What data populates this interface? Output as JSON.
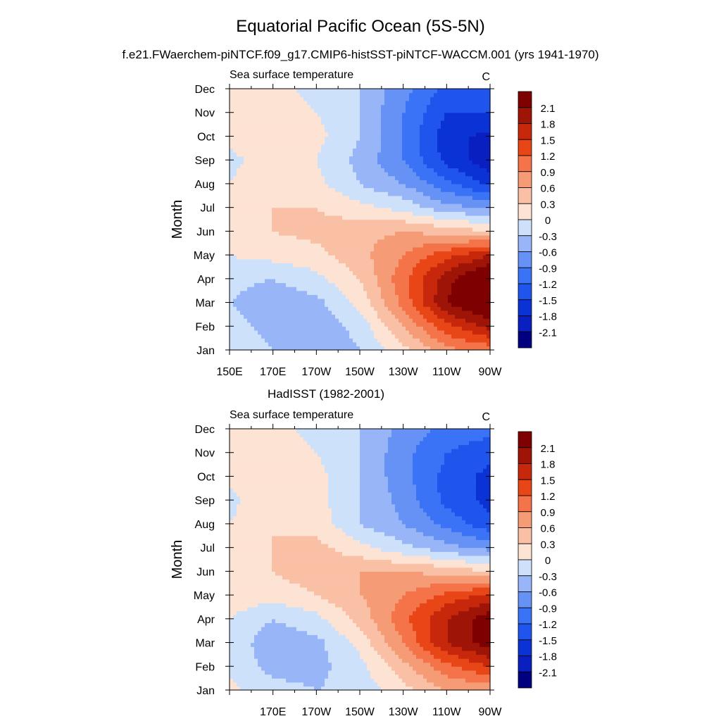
{
  "figure": {
    "title": "Equatorial Pacific Ocean (5S-5N)",
    "subtitle": "f.e21.FWaerchem-piNTCF.f09_g17.CMIP6-histSST-piNTCF-WACCM.001 (yrs 1941-1970)"
  },
  "chart_data": [
    {
      "type": "heatmap",
      "panel_title": "",
      "left_label": "Sea surface temperature",
      "right_label": "C",
      "ylabel": "Month",
      "xlabel": "",
      "x_range_deg_east": [
        150,
        270
      ],
      "x_ticks": [
        {
          "lon": 150,
          "label": "150E"
        },
        {
          "lon": 170,
          "label": "170E"
        },
        {
          "lon": 190,
          "label": "170W"
        },
        {
          "lon": 210,
          "label": "150W"
        },
        {
          "lon": 230,
          "label": "130W"
        },
        {
          "lon": 250,
          "label": "110W"
        },
        {
          "lon": 270,
          "label": "90W"
        }
      ],
      "y_ticks": [
        "Jan",
        "Feb",
        "Mar",
        "Apr",
        "May",
        "Jun",
        "Jul",
        "Aug",
        "Sep",
        "Oct",
        "Nov",
        "Dec"
      ],
      "contour_levels": [
        -2.1,
        -1.8,
        -1.5,
        -1.2,
        -0.9,
        -0.6,
        -0.3,
        0,
        0.3,
        0.6,
        0.9,
        1.2,
        1.5,
        1.8,
        2.1
      ],
      "colorbar_labels": [
        "2.1",
        "1.8",
        "1.5",
        "1.2",
        "0.9",
        "0.6",
        "0.3",
        "0",
        "-0.3",
        "-0.6",
        "-0.9",
        "-1.2",
        "-1.5",
        "-1.8",
        "-2.1"
      ],
      "colors": [
        "#000080",
        "#0a1fbf",
        "#0a32d4",
        "#1f55ec",
        "#3b73f7",
        "#6692f5",
        "#97b5f7",
        "#cde1fb",
        "#fde3d3",
        "#f9c0a5",
        "#f59b76",
        "#f47349",
        "#e84616",
        "#c7270a",
        "#9e1508",
        "#7e0000"
      ],
      "approx_anomaly_by_month": {
        "months": [
          "Jan",
          "Feb",
          "Mar",
          "Apr",
          "May",
          "Jun",
          "Jul",
          "Aug",
          "Sep",
          "Oct",
          "Nov",
          "Dec"
        ],
        "lon_east": [
          150,
          170,
          190,
          210,
          230,
          250,
          270
        ],
        "values": [
          [
            0.0,
            -0.3,
            -0.5,
            -0.3,
            0.2,
            0.8,
            1.0
          ],
          [
            -0.2,
            -0.4,
            -0.5,
            -0.2,
            0.6,
            1.4,
            1.9
          ],
          [
            -0.3,
            -0.5,
            -0.4,
            0.1,
            1.0,
            2.1,
            2.6
          ],
          [
            -0.2,
            -0.3,
            -0.1,
            0.3,
            1.1,
            2.0,
            2.6
          ],
          [
            0.0,
            0.1,
            0.2,
            0.5,
            0.9,
            1.4,
            1.8
          ],
          [
            0.1,
            0.3,
            0.4,
            0.5,
            0.6,
            0.5,
            0.3
          ],
          [
            0.2,
            0.3,
            0.3,
            0.1,
            -0.1,
            -0.5,
            -0.6
          ],
          [
            0.0,
            0.3,
            0.1,
            -0.3,
            -0.6,
            -1.1,
            -1.6
          ],
          [
            -0.1,
            0.2,
            0.0,
            -0.4,
            -0.9,
            -1.6,
            -2.0
          ],
          [
            0.1,
            0.2,
            0.1,
            -0.3,
            -0.9,
            -1.7,
            -1.9
          ],
          [
            0.1,
            0.2,
            0.0,
            -0.3,
            -0.9,
            -1.5,
            -1.5
          ],
          [
            0.1,
            0.1,
            -0.1,
            -0.3,
            -0.8,
            -1.3,
            -1.2
          ]
        ]
      }
    },
    {
      "type": "heatmap",
      "panel_title": "HadISST (1982-2001)",
      "left_label": "Sea surface temperature",
      "right_label": "C",
      "ylabel": "Month",
      "xlabel": "",
      "x_range_deg_east": [
        150,
        270
      ],
      "x_ticks": [
        {
          "lon": 170,
          "label": "170E"
        },
        {
          "lon": 190,
          "label": "170W"
        },
        {
          "lon": 210,
          "label": "150W"
        },
        {
          "lon": 230,
          "label": "130W"
        },
        {
          "lon": 250,
          "label": "110W"
        },
        {
          "lon": 270,
          "label": "90W"
        }
      ],
      "y_ticks": [
        "Jan",
        "Feb",
        "Mar",
        "Apr",
        "May",
        "Jun",
        "Jul",
        "Aug",
        "Sep",
        "Oct",
        "Nov",
        "Dec"
      ],
      "contour_levels": [
        -2.1,
        -1.8,
        -1.5,
        -1.2,
        -0.9,
        -0.6,
        -0.3,
        0,
        0.3,
        0.6,
        0.9,
        1.2,
        1.5,
        1.8,
        2.1
      ],
      "colorbar_labels": [
        "2.1",
        "1.8",
        "1.5",
        "1.2",
        "0.9",
        "0.6",
        "0.3",
        "0",
        "-0.3",
        "-0.6",
        "-0.9",
        "-1.2",
        "-1.5",
        "-1.8",
        "-2.1"
      ],
      "colors": [
        "#000080",
        "#0a1fbf",
        "#0a32d4",
        "#1f55ec",
        "#3b73f7",
        "#6692f5",
        "#97b5f7",
        "#cde1fb",
        "#fde3d3",
        "#f9c0a5",
        "#f59b76",
        "#f47349",
        "#e84616",
        "#c7270a",
        "#9e1508",
        "#7e0000"
      ],
      "approx_anomaly_by_month": {
        "months": [
          "Jan",
          "Feb",
          "Mar",
          "Apr",
          "May",
          "Jun",
          "Jul",
          "Aug",
          "Sep",
          "Oct",
          "Nov",
          "Dec"
        ],
        "lon_east": [
          150,
          170,
          190,
          210,
          230,
          250,
          270
        ],
        "values": [
          [
            0.1,
            -0.2,
            -0.3,
            -0.2,
            0.2,
            0.6,
            0.7
          ],
          [
            -0.1,
            -0.4,
            -0.4,
            -0.1,
            0.5,
            1.1,
            1.5
          ],
          [
            -0.1,
            -0.5,
            -0.4,
            0.1,
            0.9,
            1.8,
            2.3
          ],
          [
            0.0,
            -0.3,
            -0.1,
            0.4,
            1.1,
            1.8,
            2.3
          ],
          [
            0.2,
            0.1,
            0.3,
            0.6,
            0.9,
            1.3,
            1.6
          ],
          [
            0.2,
            0.3,
            0.5,
            0.6,
            0.6,
            0.5,
            0.3
          ],
          [
            0.1,
            0.3,
            0.4,
            0.1,
            -0.2,
            -0.5,
            -0.7
          ],
          [
            0.0,
            0.3,
            0.2,
            -0.3,
            -0.6,
            -1.0,
            -1.4
          ],
          [
            -0.1,
            0.3,
            0.1,
            -0.3,
            -0.7,
            -1.3,
            -1.6
          ],
          [
            0.1,
            0.2,
            0.1,
            -0.3,
            -0.8,
            -1.3,
            -1.6
          ],
          [
            0.1,
            0.2,
            0.0,
            -0.3,
            -0.8,
            -1.2,
            -1.4
          ],
          [
            0.1,
            0.1,
            -0.1,
            -0.3,
            -0.7,
            -1.0,
            -1.1
          ]
        ]
      }
    }
  ]
}
